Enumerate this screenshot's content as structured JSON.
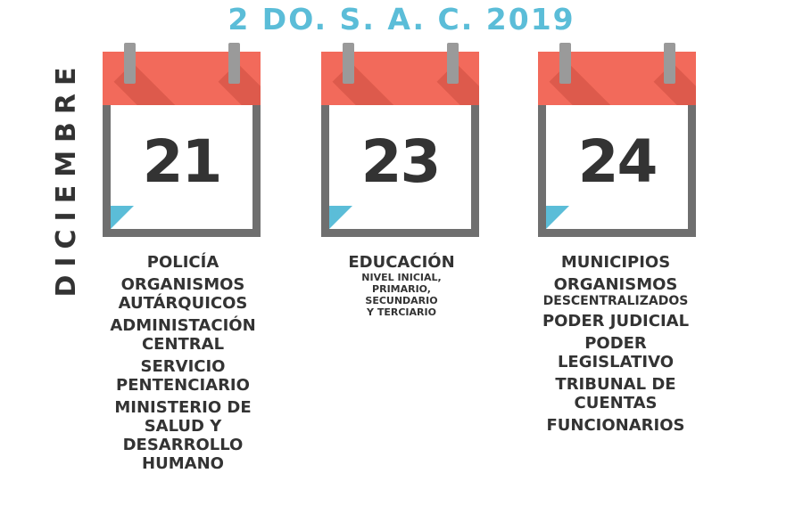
{
  "title": "2 DO. S. A. C. 2019",
  "month": "DICIEMBRE",
  "colors": {
    "accent_blue": "#5bbdd8",
    "calendar_red": "#f26a5b",
    "frame_gray": "#6f6f6f",
    "text": "#333333"
  },
  "columns": [
    {
      "day": "21",
      "groups": [
        {
          "lines": [
            "POLICÍA"
          ]
        },
        {
          "lines": [
            "ORGANISMOS",
            "AUTÁRQUICOS"
          ]
        },
        {
          "lines": [
            "ADMINISTACIÓN",
            "CENTRAL"
          ]
        },
        {
          "lines": [
            "SERVICIO",
            "PENTENCIARIO"
          ]
        },
        {
          "lines": [
            "MINISTERIO DE",
            "SALUD Y",
            "DESARROLLO",
            "HUMANO"
          ]
        }
      ]
    },
    {
      "day": "23",
      "groups": [
        {
          "lines": [
            "EDUCACIÓN"
          ],
          "sub": [
            "NIVEL INICIAL,",
            "PRIMARIO,",
            "SECUNDARIO",
            "Y TERCIARIO"
          ]
        }
      ]
    },
    {
      "day": "24",
      "groups": [
        {
          "lines": [
            "MUNICIPIOS"
          ]
        },
        {
          "lines": [
            "ORGANISMOS"
          ],
          "sub_large": [
            "DESCENTRALIZADOS"
          ]
        },
        {
          "lines": [
            "PODER JUDICIAL"
          ]
        },
        {
          "lines": [
            "PODER",
            "LEGISLATIVO"
          ]
        },
        {
          "lines": [
            "TRIBUNAL DE",
            "CUENTAS"
          ]
        },
        {
          "lines": [
            "FUNCIONARIOS"
          ]
        }
      ]
    }
  ]
}
